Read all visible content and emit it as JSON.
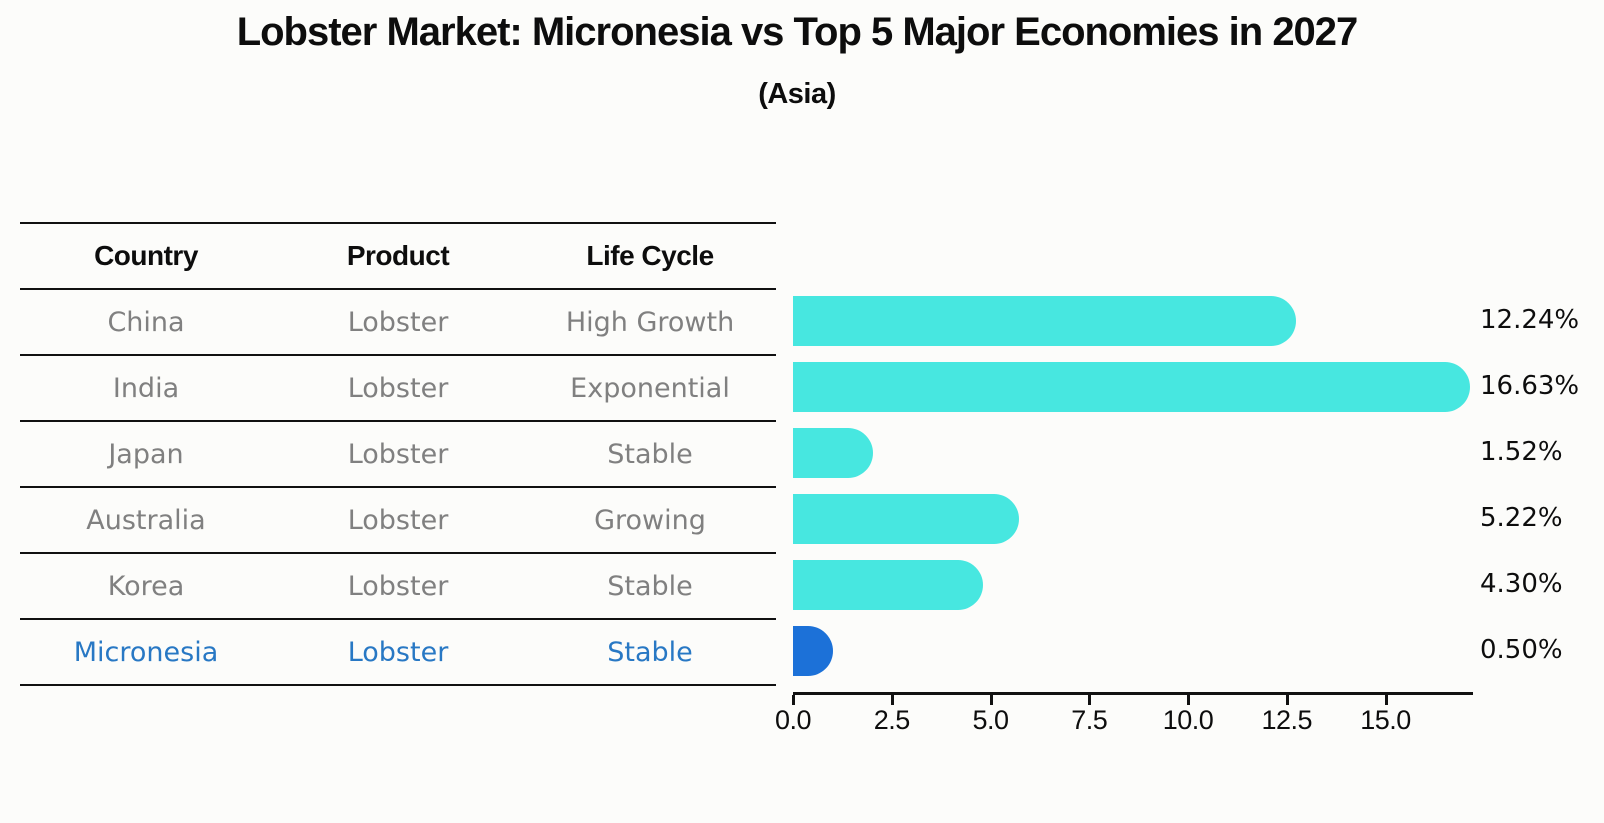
{
  "title": "Lobster Market: Micronesia vs Top 5 Major Economies in 2027",
  "subtitle": "(Asia)",
  "table": {
    "headers": [
      "Country",
      "Product",
      "Life Cycle"
    ],
    "rows": [
      {
        "country": "China",
        "product": "Lobster",
        "life_cycle": "High Growth",
        "highlight": false
      },
      {
        "country": "India",
        "product": "Lobster",
        "life_cycle": "Exponential",
        "highlight": false
      },
      {
        "country": "Japan",
        "product": "Lobster",
        "life_cycle": "Stable",
        "highlight": false
      },
      {
        "country": "Australia",
        "product": "Lobster",
        "life_cycle": "Growing",
        "highlight": false
      },
      {
        "country": "Korea",
        "product": "Lobster",
        "life_cycle": "Stable",
        "highlight": false
      },
      {
        "country": "Micronesia",
        "product": "Lobster",
        "life_cycle": "Stable",
        "highlight": true
      }
    ]
  },
  "chart_data": {
    "type": "bar",
    "orientation": "horizontal",
    "title": "Lobster Market: Micronesia vs Top 5 Major Economies in 2027",
    "subtitle": "(Asia)",
    "categories": [
      "China",
      "India",
      "Japan",
      "Australia",
      "Korea",
      "Micronesia"
    ],
    "values": [
      12.24,
      16.63,
      1.52,
      5.22,
      4.3,
      0.5
    ],
    "value_labels": [
      "12.24%",
      "16.63%",
      "1.52%",
      "5.22%",
      "4.30%",
      "0.50%"
    ],
    "x_ticks": [
      0.0,
      2.5,
      5.0,
      7.5,
      10.0,
      12.5,
      15.0
    ],
    "x_tick_labels": [
      "0.0",
      "2.5",
      "5.0",
      "7.5",
      "10.0",
      "12.5",
      "15.0"
    ],
    "xlim": [
      0,
      17.2
    ],
    "grid": false,
    "legend": "none",
    "highlight_index": 5
  },
  "colors": {
    "bar_default": "#47e7e0",
    "bar_highlight": "#1c71d8",
    "header_text": "#0d0d0d",
    "body_text": "#808080",
    "highlight_text": "#2878c4",
    "axis": "#111111",
    "background": "#fcfcfa"
  }
}
